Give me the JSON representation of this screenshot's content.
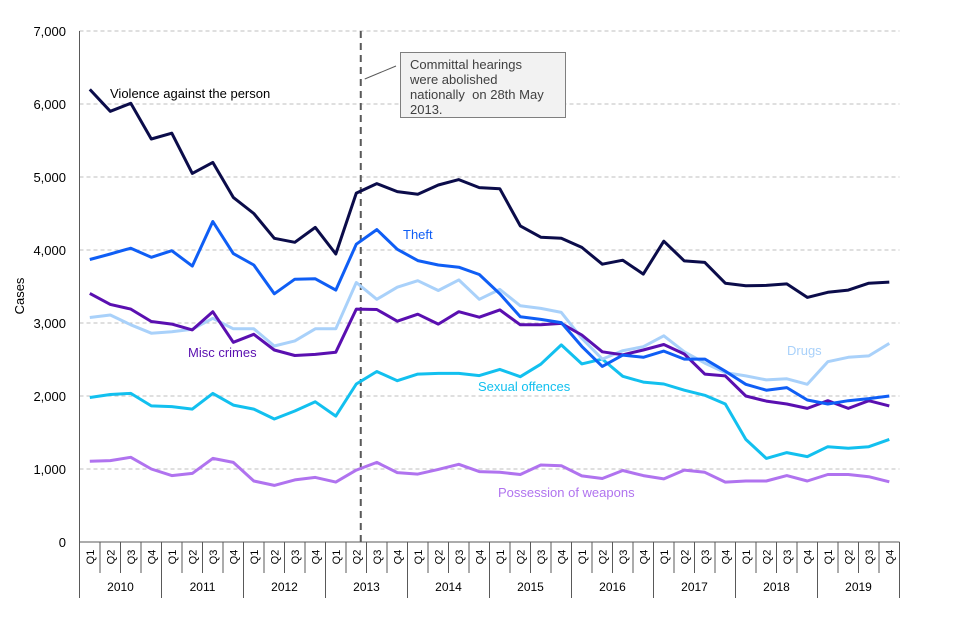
{
  "chart_data": {
    "type": "line",
    "title": "",
    "xlabel": "",
    "ylabel": "Cases",
    "ylim": [
      0,
      7000
    ],
    "yticks": [
      0,
      1000,
      2000,
      3000,
      4000,
      5000,
      6000,
      7000
    ],
    "ytick_labels": [
      "0",
      "1,000",
      "2,000",
      "3,000",
      "4,000",
      "5,000",
      "6,000",
      "7,000"
    ],
    "grid": "horizontal-dashed",
    "years": [
      "2010",
      "2011",
      "2012",
      "2013",
      "2014",
      "2015",
      "2016",
      "2017",
      "2018",
      "2019"
    ],
    "quarters": [
      "Q1",
      "Q2",
      "Q3",
      "Q4"
    ],
    "annotation": {
      "text": "Committal hearings were abolished nationally on 28th May 2013.",
      "lines": [
        "Committal hearings",
        "were abolished",
        "nationally  on 28th May",
        "2013."
      ],
      "marker_position": "2013 Q2"
    },
    "series": [
      {
        "name": "Violence against the person",
        "color": "#0b0c4a",
        "values": [
          6200,
          5900,
          6010,
          5520,
          5600,
          5050,
          5200,
          4720,
          4500,
          4160,
          4105,
          4310,
          3945,
          4780,
          4910,
          4800,
          4765,
          4890,
          4965,
          4855,
          4840,
          4330,
          4175,
          4160,
          4035,
          3805,
          3860,
          3670,
          4120,
          3850,
          3830,
          3545,
          3510,
          3515,
          3535,
          3350,
          3420,
          3450,
          3545,
          3560
        ]
      },
      {
        "name": "Theft",
        "color": "#0f5ef5",
        "values": [
          3870,
          3945,
          4025,
          3900,
          3990,
          3780,
          4390,
          3950,
          3795,
          3400,
          3600,
          3605,
          3450,
          4080,
          4280,
          4010,
          3855,
          3795,
          3765,
          3665,
          3400,
          3085,
          3050,
          3005,
          2680,
          2405,
          2560,
          2530,
          2615,
          2505,
          2505,
          2340,
          2160,
          2080,
          2115,
          1945,
          1890,
          1935,
          1965,
          2000
        ]
      },
      {
        "name": "Drugs",
        "color": "#a9d1fa",
        "values": [
          3075,
          3110,
          2975,
          2860,
          2880,
          2915,
          3065,
          2920,
          2920,
          2685,
          2755,
          2920,
          2920,
          3555,
          3325,
          3490,
          3580,
          3445,
          3590,
          3325,
          3460,
          3235,
          3200,
          3145,
          2790,
          2505,
          2620,
          2675,
          2825,
          2605,
          2450,
          2320,
          2275,
          2220,
          2235,
          2160,
          2470,
          2530,
          2550,
          2720
        ]
      },
      {
        "name": "Misc crimes",
        "color": "#5a0fb0",
        "values": [
          3405,
          3255,
          3190,
          3020,
          2985,
          2905,
          3155,
          2735,
          2845,
          2630,
          2555,
          2570,
          2600,
          3190,
          3185,
          3025,
          3120,
          2985,
          3155,
          3080,
          3180,
          2975,
          2975,
          2995,
          2835,
          2605,
          2565,
          2630,
          2705,
          2575,
          2300,
          2275,
          2000,
          1930,
          1890,
          1830,
          1935,
          1830,
          1935,
          1865
        ]
      },
      {
        "name": "Sexual offences",
        "color": "#12c0ef",
        "values": [
          1980,
          2020,
          2035,
          1865,
          1855,
          1820,
          2035,
          1875,
          1820,
          1685,
          1795,
          1920,
          1725,
          2165,
          2335,
          2210,
          2300,
          2310,
          2310,
          2280,
          2365,
          2265,
          2435,
          2700,
          2440,
          2505,
          2270,
          2190,
          2165,
          2080,
          2010,
          1890,
          1405,
          1145,
          1225,
          1170,
          1305,
          1285,
          1305,
          1405
        ]
      },
      {
        "name": "Possession of weapons",
        "color": "#b073ef",
        "values": [
          1105,
          1115,
          1160,
          1000,
          910,
          940,
          1145,
          1090,
          835,
          775,
          850,
          885,
          820,
          985,
          1090,
          950,
          930,
          995,
          1065,
          965,
          955,
          925,
          1055,
          1045,
          905,
          870,
          980,
          910,
          865,
          985,
          955,
          820,
          835,
          835,
          910,
          835,
          925,
          925,
          895,
          825
        ]
      }
    ],
    "series_labels": [
      {
        "text": "Violence against the person",
        "series": "Violence against the person"
      },
      {
        "text": "Theft",
        "series": "Theft"
      },
      {
        "text": "Drugs",
        "series": "Drugs"
      },
      {
        "text": "Misc crimes",
        "series": "Misc crimes"
      },
      {
        "text": "Sexual offences",
        "series": "Sexual offences"
      },
      {
        "text": "Possession of weapons",
        "series": "Possession of weapons"
      }
    ]
  }
}
